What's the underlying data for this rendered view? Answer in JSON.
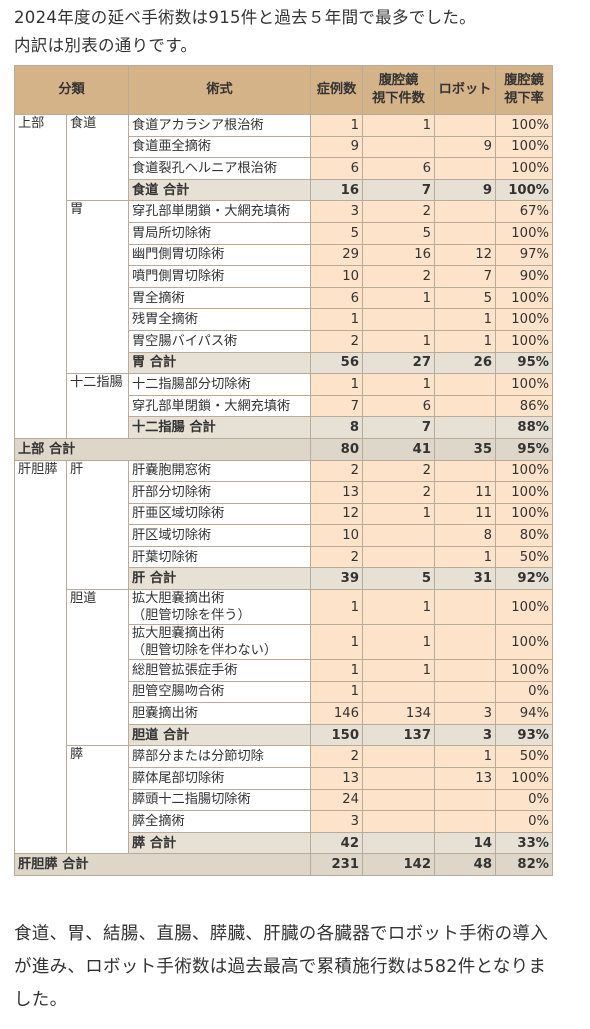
{
  "intro": [
    "2024年度の延べ手術数は915件と過去５年間で最多でした。",
    "内訳は別表の通りです。"
  ],
  "table": {
    "header": {
      "classification": "分類",
      "procedure": "術式",
      "cases": "症例数",
      "laparoscopic": [
        "腹腔鏡",
        "視下件数"
      ],
      "robot": "ロボット",
      "rate": [
        "腹腔鏡",
        "視下率"
      ]
    },
    "sections": [
      {
        "name": "上部",
        "groups": [
          {
            "name": "食道",
            "rows": [
              {
                "procedure": "食道アカラシア根治術",
                "cases": 1,
                "laparoscopic": 1,
                "robot": null,
                "rate": "100%"
              },
              {
                "procedure": "食道亜全摘術",
                "cases": 9,
                "laparoscopic": null,
                "robot": 9,
                "rate": "100%"
              },
              {
                "procedure": "食道裂孔ヘルニア根治術",
                "cases": 6,
                "laparoscopic": 6,
                "robot": null,
                "rate": "100%"
              }
            ],
            "total": {
              "procedure": "食道 合計",
              "cases": 16,
              "laparoscopic": 7,
              "robot": 9,
              "rate": "100%"
            }
          },
          {
            "name": "胃",
            "rows": [
              {
                "procedure": "穿孔部単閉鎖・大網充填術",
                "cases": 3,
                "laparoscopic": 2,
                "robot": null,
                "rate": "67%"
              },
              {
                "procedure": "胃局所切除術",
                "cases": 5,
                "laparoscopic": 5,
                "robot": null,
                "rate": "100%"
              },
              {
                "procedure": "幽門側胃切除術",
                "cases": 29,
                "laparoscopic": 16,
                "robot": 12,
                "rate": "97%"
              },
              {
                "procedure": "噴門側胃切除術",
                "cases": 10,
                "laparoscopic": 2,
                "robot": 7,
                "rate": "90%"
              },
              {
                "procedure": "胃全摘術",
                "cases": 6,
                "laparoscopic": 1,
                "robot": 5,
                "rate": "100%"
              },
              {
                "procedure": "残胃全摘術",
                "cases": 1,
                "laparoscopic": null,
                "robot": 1,
                "rate": "100%"
              },
              {
                "procedure": "胃空腸バイパス術",
                "cases": 2,
                "laparoscopic": 1,
                "robot": 1,
                "rate": "100%"
              }
            ],
            "total": {
              "procedure": "胃 合計",
              "cases": 56,
              "laparoscopic": 27,
              "robot": 26,
              "rate": "95%"
            }
          },
          {
            "name": "十二指腸",
            "rows": [
              {
                "procedure": "十二指腸部分切除術",
                "cases": 1,
                "laparoscopic": 1,
                "robot": null,
                "rate": "100%"
              },
              {
                "procedure": "穿孔部単閉鎖・大網充填術",
                "cases": 7,
                "laparoscopic": 6,
                "robot": null,
                "rate": "86%"
              }
            ],
            "total": {
              "procedure": "十二指腸 合計",
              "cases": 8,
              "laparoscopic": 7,
              "robot": null,
              "rate": "88%"
            }
          }
        ],
        "total": {
          "procedure": "上部 合計",
          "cases": 80,
          "laparoscopic": 41,
          "robot": 35,
          "rate": "95%"
        }
      },
      {
        "name": "肝胆膵",
        "groups": [
          {
            "name": "肝",
            "rows": [
              {
                "procedure": "肝嚢胞開窓術",
                "cases": 2,
                "laparoscopic": 2,
                "robot": null,
                "rate": "100%"
              },
              {
                "procedure": "肝部分切除術",
                "cases": 13,
                "laparoscopic": 2,
                "robot": 11,
                "rate": "100%"
              },
              {
                "procedure": "肝亜区域切除術",
                "cases": 12,
                "laparoscopic": 1,
                "robot": 11,
                "rate": "100%"
              },
              {
                "procedure": "肝区域切除術",
                "cases": 10,
                "laparoscopic": null,
                "robot": 8,
                "rate": "80%"
              },
              {
                "procedure": "肝葉切除術",
                "cases": 2,
                "laparoscopic": null,
                "robot": 1,
                "rate": "50%"
              }
            ],
            "total": {
              "procedure": "肝 合計",
              "cases": 39,
              "laparoscopic": 5,
              "robot": 31,
              "rate": "92%"
            }
          },
          {
            "name": "胆道",
            "rows": [
              {
                "procedure": "拡大胆嚢摘出術\n（胆管切除を伴う）",
                "cases": 1,
                "laparoscopic": 1,
                "robot": null,
                "rate": "100%"
              },
              {
                "procedure": "拡大胆嚢摘出術\n（胆管切除を伴わない）",
                "cases": 1,
                "laparoscopic": 1,
                "robot": null,
                "rate": "100%"
              },
              {
                "procedure": "総胆管拡張症手術",
                "cases": 1,
                "laparoscopic": 1,
                "robot": null,
                "rate": "100%"
              },
              {
                "procedure": "胆管空腸吻合術",
                "cases": 1,
                "laparoscopic": null,
                "robot": null,
                "rate": "0%"
              },
              {
                "procedure": "胆嚢摘出術",
                "cases": 146,
                "laparoscopic": 134,
                "robot": 3,
                "rate": "94%"
              }
            ],
            "total": {
              "procedure": "胆道 合計",
              "cases": 150,
              "laparoscopic": 137,
              "robot": 3,
              "rate": "93%"
            }
          },
          {
            "name": "膵",
            "rows": [
              {
                "procedure": "膵部分または分節切除",
                "cases": 2,
                "laparoscopic": null,
                "robot": 1,
                "rate": "50%"
              },
              {
                "procedure": "膵体尾部切除術",
                "cases": 13,
                "laparoscopic": null,
                "robot": 13,
                "rate": "100%"
              },
              {
                "procedure": "膵頭十二指腸切除術",
                "cases": 24,
                "laparoscopic": null,
                "robot": null,
                "rate": "0%"
              },
              {
                "procedure": "膵全摘術",
                "cases": 3,
                "laparoscopic": null,
                "robot": null,
                "rate": "0%"
              }
            ],
            "total": {
              "procedure": "膵 合計",
              "cases": 42,
              "laparoscopic": null,
              "robot": 14,
              "rate": "33%"
            }
          }
        ],
        "total": {
          "procedure": "肝胆膵 合計",
          "cases": 231,
          "laparoscopic": 142,
          "robot": 48,
          "rate": "82%"
        }
      }
    ]
  },
  "closing": "食道、胃、結腸、直腸、膵臓、肝臓の各臓器でロボット手術の導入が進み、ロボット手術数は過去最高で累積施行数は582件となりました。"
}
